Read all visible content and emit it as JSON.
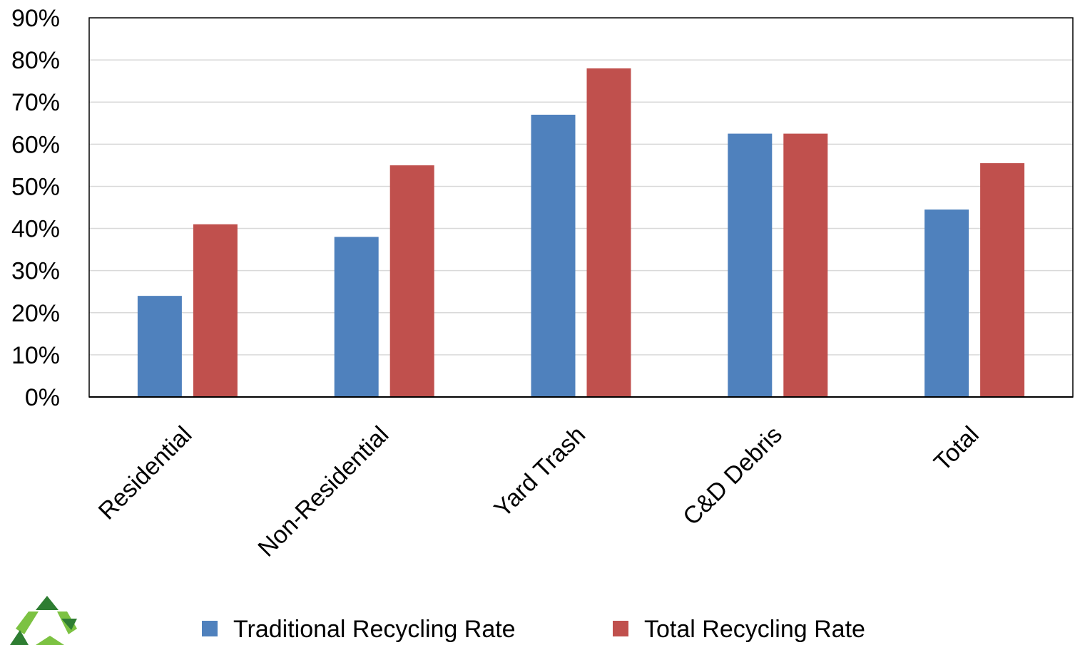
{
  "chart_data": {
    "type": "bar",
    "categories": [
      "Residential",
      "Non-Residential",
      "Yard Trash",
      "C&D Debris",
      "Total"
    ],
    "series": [
      {
        "name": "Traditional Recycling Rate",
        "color": "#4f81bd",
        "values": [
          24,
          38,
          67,
          62.5,
          44.5
        ]
      },
      {
        "name": "Total Recycling Rate",
        "color": "#c0504d",
        "values": [
          41,
          55,
          78,
          62.5,
          55.5
        ]
      }
    ],
    "y_ticks": [
      "0%",
      "10%",
      "20%",
      "30%",
      "40%",
      "50%",
      "60%",
      "70%",
      "80%",
      "90%"
    ],
    "ylim": [
      0,
      90
    ],
    "y_unit": "%",
    "grid": true,
    "legend_position": "bottom",
    "title": "",
    "xlabel": "",
    "ylabel": ""
  },
  "logo": {
    "icon": "recycle-logo-icon",
    "colors": [
      "#2e7d32",
      "#7cc242"
    ]
  }
}
